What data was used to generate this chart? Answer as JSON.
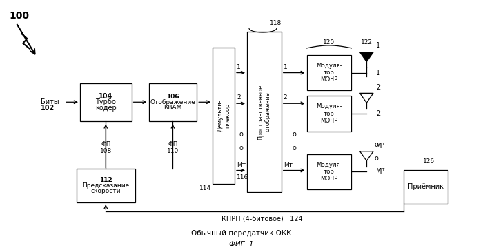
{
  "background_color": "#ffffff",
  "fig_label": "100",
  "fig_caption": "ФИГ. 1",
  "subtitle": "Обычный передатчик ОКК",
  "knrp_label": "КНРП (4-битовое)   124"
}
